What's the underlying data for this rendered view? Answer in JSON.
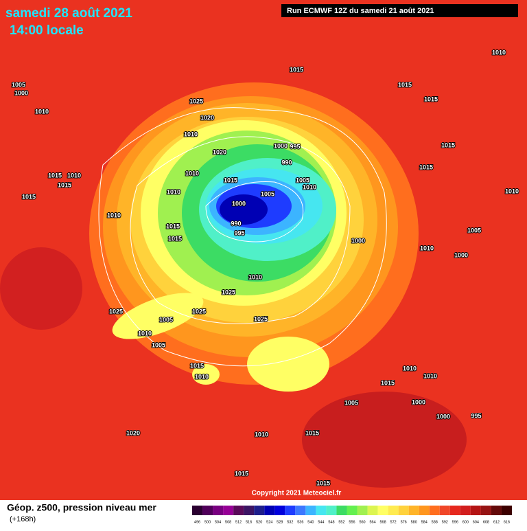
{
  "header": {
    "date": "samedi 28 août 2021",
    "time": "14:00 locale",
    "run": "Run ECMWF 12Z du samedi 21 août 2021"
  },
  "footer": {
    "title": "Géop. z500, pression niveau mer",
    "lead": "(+168h)",
    "copyright": "Copyright 2021 Meteociel.fr"
  },
  "pressure_labels": [
    "1015",
    "1005",
    "1000",
    "1010",
    "1010",
    "1025",
    "1020",
    "1010",
    "1015",
    "1015",
    "1020",
    "1000",
    "995",
    "990",
    "1015",
    "1005",
    "1010",
    "1000",
    "1005",
    "990",
    "995",
    "1015",
    "1010",
    "1015",
    "1015",
    "1010",
    "1010",
    "1010",
    "1015",
    "1015",
    "1000",
    "1010",
    "1025",
    "1025",
    "1005",
    "1025",
    "1025",
    "1010",
    "1005",
    "1015",
    "1010",
    "1020",
    "1010",
    "1015",
    "1015",
    "1015",
    "1010",
    "1010",
    "1000",
    "995",
    "1000",
    "1015",
    "1005",
    "1015",
    "1015",
    "1010",
    "1005",
    "1000",
    "1010"
  ],
  "color_scale": [
    {
      "label": "496",
      "color": "#2a0030"
    },
    {
      "label": "500",
      "color": "#50005a"
    },
    {
      "label": "504",
      "color": "#780080"
    },
    {
      "label": "508",
      "color": "#960096"
    },
    {
      "label": "512",
      "color": "#5a0a5a"
    },
    {
      "label": "516",
      "color": "#3c1464"
    },
    {
      "label": "520",
      "color": "#1e1e8c"
    },
    {
      "label": "524",
      "color": "#0000b4"
    },
    {
      "label": "528",
      "color": "#0000dc"
    },
    {
      "label": "532",
      "color": "#1e3cff"
    },
    {
      "label": "536",
      "color": "#3c78ff"
    },
    {
      "label": "540",
      "color": "#3cb4ff"
    },
    {
      "label": "544",
      "color": "#46e6f0"
    },
    {
      "label": "548",
      "color": "#50f0c8"
    },
    {
      "label": "552",
      "color": "#3cdc64"
    },
    {
      "label": "556",
      "color": "#64f050"
    },
    {
      "label": "560",
      "color": "#a0f050"
    },
    {
      "label": "564",
      "color": "#dcf550"
    },
    {
      "label": "568",
      "color": "#ffff64"
    },
    {
      "label": "572",
      "color": "#ffeb50"
    },
    {
      "label": "576",
      "color": "#ffd23c"
    },
    {
      "label": "580",
      "color": "#ffb428"
    },
    {
      "label": "584",
      "color": "#ff961e"
    },
    {
      "label": "588",
      "color": "#ff6e1e"
    },
    {
      "label": "592",
      "color": "#f04628"
    },
    {
      "label": "596",
      "color": "#e6281e"
    },
    {
      "label": "600",
      "color": "#d21e1e"
    },
    {
      "label": "604",
      "color": "#b41414"
    },
    {
      "label": "608",
      "color": "#961414"
    },
    {
      "label": "612",
      "color": "#640a0a"
    },
    {
      "label": "616",
      "color": "#3c0000"
    }
  ]
}
